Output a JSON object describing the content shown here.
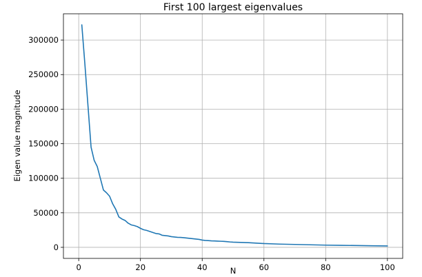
{
  "chart_data": {
    "type": "line",
    "title": "First 100 largest eigenvalues",
    "xlabel": "N",
    "ylabel": "Eigen value magnitude",
    "xlim": [
      -4.95,
      104.95
    ],
    "ylim": [
      -16000,
      338000
    ],
    "xticks": [
      0,
      20,
      40,
      60,
      80,
      100
    ],
    "yticks": [
      0,
      50000,
      100000,
      150000,
      200000,
      250000,
      300000
    ],
    "grid": true,
    "color": "#1f77b4",
    "series": [
      {
        "x": [
          1,
          2,
          3,
          4,
          5,
          6,
          7,
          8,
          9,
          10,
          11,
          12,
          13,
          14,
          15,
          16,
          17,
          18,
          19,
          20,
          21,
          22,
          23,
          24,
          25,
          26,
          27,
          28,
          29,
          30,
          31,
          32,
          33,
          34,
          35,
          36,
          37,
          38,
          39,
          40,
          41,
          42,
          43,
          44,
          45,
          46,
          47,
          48,
          49,
          50,
          55,
          60,
          65,
          70,
          75,
          80,
          85,
          90,
          95,
          100
        ],
        "y": [
          322000,
          265000,
          205000,
          145000,
          126000,
          117000,
          100000,
          83000,
          79000,
          74000,
          63000,
          55000,
          44000,
          41000,
          39000,
          35000,
          32500,
          31500,
          30000,
          27500,
          25500,
          24500,
          23000,
          21500,
          20000,
          19500,
          17500,
          17000,
          16500,
          15500,
          15000,
          14500,
          14300,
          14000,
          13500,
          13000,
          12500,
          12000,
          11500,
          10500,
          10000,
          9700,
          9400,
          9200,
          9000,
          8800,
          8600,
          8200,
          7800,
          7500,
          6800,
          5500,
          4700,
          4200,
          3700,
          3200,
          2900,
          2600,
          2300,
          2000
        ]
      }
    ]
  }
}
